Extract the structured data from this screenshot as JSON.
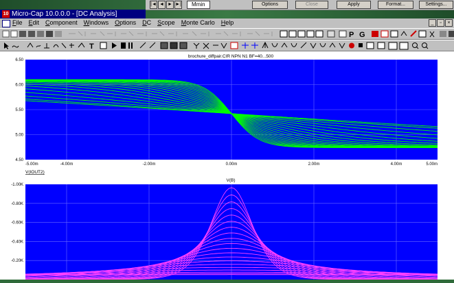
{
  "floating_window": {
    "nav_buttons": [
      "|◄",
      "◄",
      "►",
      "►|"
    ],
    "tab_label": "Mmin",
    "buttons": [
      "Options",
      "Close",
      "Apply",
      "Format...",
      "Settings..."
    ]
  },
  "window": {
    "app_icon": "10",
    "title": "Micro-Cap 10.0.0.0 - [DC Analysis]"
  },
  "menu": {
    "items": [
      "File",
      "Edit",
      "Component",
      "Windows",
      "Options",
      "DC",
      "Scope",
      "Monte Carlo",
      "Help"
    ]
  },
  "toolbar": {
    "letters": [
      "P",
      "G"
    ],
    "text_tool": "T"
  },
  "chart_data": [
    {
      "type": "line",
      "title": "brochure_diffpair.CIR NPN N1 BF=40...500",
      "xlabel": "V(IOUT2)",
      "ylabel": "",
      "x_ticks": [
        "-5.00m",
        "-4.00m",
        "-2.00m",
        "0.00m",
        "2.00m",
        "4.00m",
        "5.00m"
      ],
      "y_ticks": [
        "6.50",
        "6.00",
        "5.50",
        "5.00",
        "4.50"
      ],
      "xlim": [
        -0.005,
        0.005
      ],
      "ylim": [
        4.5,
        6.5
      ],
      "color": "#00ff00",
      "background": "#0000ff",
      "series_count": 20
    },
    {
      "type": "line",
      "title": "",
      "xlabel": "",
      "ylabel": "V(B)",
      "y_ticks": [
        "-1.00K",
        "-0.80K",
        "-0.60K",
        "-0.40K",
        "-0.20K"
      ],
      "xlim": [
        -0.005,
        0.005
      ],
      "ylim": [
        -1000,
        0
      ],
      "color": "#ff40ff",
      "background": "#0000ff",
      "series_count": 20
    }
  ]
}
